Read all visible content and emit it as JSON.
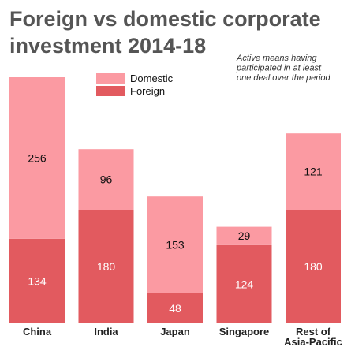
{
  "chart_data": {
    "type": "bar",
    "stacked": true,
    "title_lines": [
      "Foreign vs domestic corporate",
      "investment 2014-18"
    ],
    "note_lines": [
      "Active means having",
      "participated in at least",
      "one deal over the period"
    ],
    "categories": [
      [
        "China"
      ],
      [
        "India"
      ],
      [
        "Japan"
      ],
      [
        "Singapore"
      ],
      [
        "Rest of",
        "Asia-Pacific"
      ]
    ],
    "series": [
      {
        "name": "Foreign",
        "color": "#e25a5f",
        "label_color": "#ffffff",
        "values": [
          134,
          180,
          48,
          124,
          180
        ]
      },
      {
        "name": "Domestic",
        "color": "#fb9aa2",
        "label_color": "#111111",
        "values": [
          256,
          96,
          153,
          29,
          121
        ]
      }
    ],
    "legend_order": [
      "Domestic",
      "Foreign"
    ],
    "legend_position": "top-center",
    "ylim": [
      0,
      400
    ],
    "grid": false
  }
}
